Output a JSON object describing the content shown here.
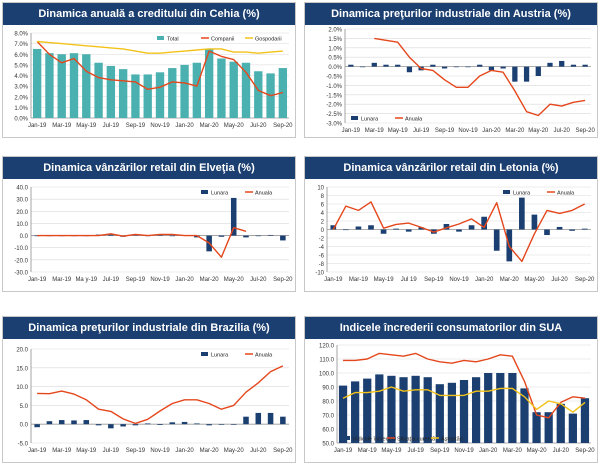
{
  "colors": {
    "bar": "#1b3f70",
    "bar_teal": "#4bb0b0",
    "line_red": "#e5471c",
    "line_yellow": "#f2c21a",
    "grid": "#d9d9d9",
    "axis": "#7f7f7f",
    "zero": "#9a9a9a"
  },
  "chart_data": [
    {
      "id": "cz",
      "type": "bar",
      "title": "Dinamica anuală a creditului din Cehia (%)",
      "categories": [
        "Jan-19",
        "Feb-19",
        "Mar-19",
        "Apr-19",
        "May-19",
        "Jun-19",
        "Jul-19",
        "Aug-19",
        "Sep-19",
        "Oct-19",
        "Nov-19",
        "Dec-19",
        "Jan-20",
        "Feb-20",
        "Mar-20",
        "Apr-20",
        "May-20",
        "Jun-20",
        "Jul-20",
        "Aug-20",
        "Sep-20"
      ],
      "x_tick_labels": [
        "Jan-19",
        "Mar-19",
        "May-19",
        "Jul-19",
        "Sep-19",
        "Nov-19",
        "Jan-20",
        "Mar-20",
        "May-20",
        "Jul-20",
        "Sep-20"
      ],
      "ylim": [
        0,
        8
      ],
      "yticks": [
        0,
        1,
        2,
        3,
        4,
        5,
        6,
        7,
        8
      ],
      "ytick_labels": [
        "0.0%",
        "1.0%",
        "2.0%",
        "3.0%",
        "4.0%",
        "5.0%",
        "6.0%",
        "7.0%",
        "8.0%"
      ],
      "legend": [
        "Total",
        "Companii",
        "Gospodarii"
      ],
      "legend_position": "top-right",
      "series": [
        {
          "name": "Total",
          "kind": "bar",
          "color": "#4bb0b0",
          "values": [
            6.5,
            6.1,
            6.0,
            6.1,
            6.0,
            5.2,
            4.9,
            4.6,
            4.1,
            4.1,
            4.3,
            4.7,
            5.0,
            5.2,
            6.5,
            5.6,
            5.3,
            5.2,
            4.4,
            4.2,
            4.7
          ]
        },
        {
          "name": "Companii",
          "kind": "line",
          "color": "#e5471c",
          "values": [
            7.2,
            6.0,
            5.2,
            5.6,
            4.4,
            3.8,
            3.6,
            3.5,
            3.4,
            2.7,
            2.9,
            3.4,
            3.3,
            3.0,
            6.3,
            5.8,
            5.5,
            4.3,
            2.6,
            2.1,
            2.4
          ]
        },
        {
          "name": "Gospodarii",
          "kind": "line",
          "color": "#f2c21a",
          "values": [
            7.2,
            7.1,
            7.0,
            6.9,
            6.8,
            6.7,
            6.6,
            6.5,
            6.3,
            6.1,
            6.1,
            6.2,
            6.3,
            6.4,
            6.5,
            6.5,
            6.2,
            6.2,
            6.1,
            6.2,
            6.3
          ]
        }
      ]
    },
    {
      "id": "at",
      "type": "bar",
      "title": "Dinamica preţurilor industriale din Austria (%)",
      "categories": [
        "Jan-19",
        "Feb-19",
        "Mar-19",
        "Apr-19",
        "May-19",
        "Jun-19",
        "Jul-19",
        "Aug-19",
        "Sep-19",
        "Oct-19",
        "Nov-19",
        "Dec-19",
        "Jan-20",
        "Feb-20",
        "Mar-20",
        "Apr-20",
        "May-20",
        "Jun-20",
        "Jul-20",
        "Aug-20",
        "Sep-20"
      ],
      "x_tick_labels": [
        "Jan-19",
        "Mar-19",
        "May-19",
        "Jul-19",
        "Sep-19",
        "Nov-19",
        "Jan-20",
        "Mar-20",
        "May-20",
        "Jul-20",
        "Sep-20"
      ],
      "ylim": [
        -3,
        2
      ],
      "yticks": [
        2,
        1.5,
        1,
        0.5,
        0,
        -0.5,
        -1,
        -1.5,
        -2,
        -2.5,
        -3
      ],
      "ytick_labels": [
        "2.0%",
        "1.5%",
        "1.0%",
        "0.5%",
        "0.0%",
        "-0.5%",
        "-1.0%",
        "-1.5%",
        "-2.0%",
        "-2.5%",
        "-3.0%"
      ],
      "legend": [
        "Lunara",
        "Anuala"
      ],
      "legend_position": "bottom-left",
      "series": [
        {
          "name": "Lunara",
          "kind": "bar",
          "color": "#1b3f70",
          "values": [
            0.1,
            0,
            0.2,
            0.1,
            0.1,
            -0.3,
            -0.2,
            0.1,
            -0.1,
            0,
            0,
            0.1,
            -0.2,
            -0.1,
            -0.8,
            -0.8,
            -0.5,
            0.2,
            0.3,
            0.1,
            0.1
          ]
        },
        {
          "name": "Anuala",
          "kind": "line",
          "color": "#e5471c",
          "values": [
            null,
            null,
            1.5,
            1.4,
            1.3,
            0.5,
            -0.1,
            -0.2,
            -0.7,
            -1.1,
            -1.1,
            -0.5,
            -0.2,
            -0.3,
            -1.3,
            -2.4,
            -2.6,
            -2.0,
            -2.1,
            -1.9,
            -1.8
          ]
        }
      ]
    },
    {
      "id": "ch",
      "type": "bar",
      "title": "Dinamica vânzărilor retail din Elveţia (%)",
      "categories": [
        "Jan-19",
        "Feb-19",
        "Mar-19",
        "Apr-19",
        "May-19",
        "Jun-19",
        "Jul-19",
        "Aug-19",
        "Sep-19",
        "Oct-19",
        "Nov-19",
        "Dec-19",
        "Jan-20",
        "Feb-20",
        "Mar-20",
        "Apr-20",
        "May-20",
        "Jun-20",
        "Jul-20",
        "Aug-20",
        "Sep-20"
      ],
      "x_tick_labels": [
        "Jan-19",
        "Mar-19",
        "Ma y-19",
        "Jul-19",
        "Sep-19",
        "Nov-19",
        "Jan-20",
        "Mar-20",
        "May-20",
        "Jul-20",
        "Sep-20"
      ],
      "ylim": [
        -30,
        40
      ],
      "yticks": [
        40,
        30,
        20,
        10,
        0,
        -10,
        -20,
        -30
      ],
      "ytick_labels": [
        "40.0",
        "30.0",
        "20.0",
        "10.0",
        "0.0",
        "-10.0",
        "-20.0",
        "-30.0"
      ],
      "legend": [
        "Lunara",
        "Anuala"
      ],
      "legend_position": "top-right",
      "series": [
        {
          "name": "Lunara",
          "kind": "bar",
          "color": "#1b3f70",
          "values": [
            0,
            0,
            0,
            0,
            0,
            0.8,
            0.8,
            -1,
            0.5,
            -0.5,
            1.2,
            -0.5,
            0.3,
            -1.5,
            -13,
            -1,
            31,
            -1.5,
            0,
            0.5,
            -4
          ]
        },
        {
          "name": "Anuala",
          "kind": "line",
          "color": "#e5471c",
          "values": [
            0,
            0,
            0,
            0,
            0,
            0,
            1.5,
            -0.5,
            1,
            0,
            1,
            1,
            0,
            0,
            -6,
            -17.8,
            6.5,
            3.5,
            null,
            null,
            0.5
          ]
        }
      ]
    },
    {
      "id": "lv",
      "type": "bar",
      "title": "Dinamica vânzărilor retail din Letonia (%)",
      "categories": [
        "Jan-19",
        "Feb-19",
        "Mar-19",
        "Apr-19",
        "May-19",
        "Jun-19",
        "Jul-19",
        "Aug-19",
        "Sep-19",
        "Oct-19",
        "Nov-19",
        "Dec-19",
        "Jan-20",
        "Feb-20",
        "Mar-20",
        "Apr-20",
        "May-20",
        "Jun-20",
        "Jul-20",
        "Aug-20",
        "Sep-20"
      ],
      "x_tick_labels": [
        "Jan-19",
        "Mar-19",
        "May-19",
        "Jul 19",
        "Sep-19",
        "Nov-19",
        "Jan-20",
        "Mar-20",
        "May-20",
        "Jul-20",
        "Sep-20"
      ],
      "ylim": [
        -10,
        10
      ],
      "yticks": [
        10,
        8,
        6,
        4,
        2,
        0,
        -2,
        -4,
        -6,
        -8,
        -10
      ],
      "ytick_labels": [
        "10",
        "8",
        "6",
        "4",
        "2",
        "0",
        "-2",
        "-4",
        "-6",
        "-8",
        "-10"
      ],
      "legend": [
        "Lunara",
        "Anuala"
      ],
      "legend_position": "top-right",
      "series": [
        {
          "name": "Lunara",
          "kind": "bar",
          "color": "#1b3f70",
          "values": [
            1,
            0,
            0.7,
            1,
            -1,
            0.2,
            -0.5,
            0.5,
            -1,
            1.3,
            -0.5,
            1,
            3,
            -5,
            -7.5,
            7.5,
            3.5,
            -1.3,
            0.6,
            -0.3,
            0.2
          ]
        },
        {
          "name": "Anuala",
          "kind": "line",
          "color": "#e5471c",
          "values": [
            0,
            5.5,
            4.5,
            6.5,
            0.3,
            1.2,
            1.5,
            0.5,
            -0.6,
            0.4,
            1.3,
            2.5,
            0.5,
            6.3,
            -4,
            -7.5,
            -1,
            4.5,
            3.8,
            4.5,
            6
          ]
        }
      ]
    },
    {
      "id": "br",
      "type": "bar",
      "title": "Dinamica preţurilor industriale din Brazilia (%)",
      "categories": [
        "Jan-19",
        "Feb-19",
        "Mar-19",
        "Apr-19",
        "May-19",
        "Jun-19",
        "Jul-19",
        "Aug-19",
        "Sep-19",
        "Oct-19",
        "Nov-19",
        "Dec-19",
        "Jan-20",
        "Feb-20",
        "Mar-20",
        "Apr-20",
        "May-20",
        "Jun-20",
        "Jul-20",
        "Aug-20",
        "Sep-20"
      ],
      "x_tick_labels": [
        "Jan-19",
        "Mar-19",
        "May-19",
        "Jul-19",
        "Sep-19",
        "Nov-19",
        "Jan-20",
        "Mar-20",
        "May-20",
        "Jul-20",
        "Sep-20"
      ],
      "ylim": [
        -5,
        20
      ],
      "yticks": [
        20,
        15,
        10,
        5,
        0,
        -5
      ],
      "ytick_labels": [
        "20.0",
        "15.0",
        "10.0",
        "5.0",
        "0.0",
        "-5.0"
      ],
      "legend": [
        "Lunara",
        "Anuala"
      ],
      "legend_position": "top-right",
      "series": [
        {
          "name": "Lunara",
          "kind": "bar",
          "color": "#1b3f70",
          "values": [
            -0.8,
            0.8,
            1.1,
            1,
            1.1,
            -0.3,
            -1.1,
            -0.6,
            -0.3,
            0.2,
            -0.2,
            0.5,
            0.6,
            0.2,
            -0.3,
            0,
            0,
            2,
            3,
            3,
            2
          ]
        },
        {
          "name": "Anuala",
          "kind": "line",
          "color": "#e5471c",
          "values": [
            8.2,
            8.1,
            8.8,
            8,
            6.5,
            4,
            3.4,
            1.4,
            0.2,
            1.3,
            3.5,
            5.5,
            6.5,
            6.5,
            5.5,
            4,
            5,
            8.5,
            11,
            14,
            15.5
          ]
        }
      ]
    },
    {
      "id": "us",
      "type": "bar",
      "title": "Indicele încrederii consumatorilor din SUA",
      "categories": [
        "Jan-19",
        "Feb-19",
        "Mar-19",
        "Apr-19",
        "May-19",
        "Jun-19",
        "Jul-19",
        "Aug-19",
        "Sep-19",
        "Oct-19",
        "Nov-19",
        "Dec-19",
        "Jan-20",
        "Feb-20",
        "Mar-20",
        "Apr-20",
        "May-20",
        "Jun-20",
        "Jul-20",
        "Aug-20",
        "Sep-20"
      ],
      "x_tick_labels": [
        "Jan-19",
        "Mar-19",
        "May-19",
        "Jul-19",
        "Sep-19",
        "Nov-19",
        "Jan-20",
        "Mar-20",
        "May-20",
        "Jul-20",
        "Sep-20"
      ],
      "ylim": [
        50,
        120
      ],
      "yticks": [
        120,
        110,
        100,
        90,
        80,
        70,
        60,
        50
      ],
      "ytick_labels": [
        "120.0",
        "110.0",
        "100.0",
        "90.0",
        "80.0",
        "70.0",
        "60.0",
        "50.0"
      ],
      "legend": [
        "Indicele încrederii",
        "Situaţia curentă",
        "Aşteptări"
      ],
      "legend_position": "bottom-left",
      "series": [
        {
          "name": "Indicele încrederii",
          "kind": "bar",
          "color": "#1b3f70",
          "values": [
            91,
            94,
            96,
            99,
            98,
            97,
            98,
            97,
            92,
            93,
            95,
            97,
            100,
            100,
            100,
            89,
            72,
            72,
            78,
            71,
            82
          ]
        },
        {
          "name": "Situaţia curentă",
          "kind": "line",
          "color": "#e5471c",
          "values": [
            109,
            109,
            110,
            114,
            113,
            112,
            114,
            110,
            108,
            107,
            109,
            108,
            110,
            113,
            112,
            94,
            70,
            68,
            79,
            83,
            82
          ]
        },
        {
          "name": "Aşteptări",
          "kind": "line",
          "color": "#f2c21a",
          "values": [
            82,
            86,
            86,
            87,
            90,
            87,
            88,
            88,
            84,
            84,
            84,
            87,
            87,
            89,
            89,
            83,
            74,
            80,
            78,
            72,
            79
          ]
        }
      ]
    }
  ]
}
